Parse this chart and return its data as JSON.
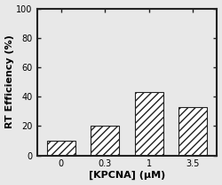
{
  "categories": [
    "0",
    "0.3",
    "1",
    "3.5"
  ],
  "x_positions": [
    0,
    1,
    2,
    3
  ],
  "values": [
    10,
    20,
    43,
    33
  ],
  "bar_width": 0.65,
  "bar_facecolor": "white",
  "bar_edgecolor": "#222222",
  "hatch_pattern": "////",
  "ylabel": "RT Efficiency (%)",
  "xlabel": "[KPCNA] (μM)",
  "ylim": [
    0,
    100
  ],
  "yticks": [
    0,
    20,
    40,
    60,
    80,
    100
  ],
  "xlim": [
    -0.55,
    3.55
  ],
  "title": "",
  "background_color": "#e8e8e8",
  "axes_background": "#e8e8e8",
  "tick_fontsize": 7,
  "label_fontsize": 8,
  "spine_linewidth": 1.5
}
